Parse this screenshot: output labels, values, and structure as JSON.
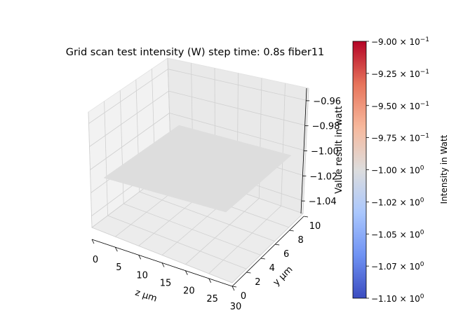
{
  "chart_data": {
    "type": "surface",
    "title": "Grid scan test intensity (W) step time: 0.8s fiber11",
    "xlabel": "z µm",
    "ylabel": "y µm",
    "zlabel": "Value result in watt",
    "x_ticks": [
      "0",
      "5",
      "10",
      "15",
      "20",
      "25",
      "30"
    ],
    "x_tick_values": [
      0,
      5,
      10,
      15,
      20,
      25,
      30
    ],
    "y_ticks": [
      "0",
      "2",
      "4",
      "6",
      "8",
      "10"
    ],
    "y_tick_values": [
      0,
      2,
      4,
      6,
      8,
      10
    ],
    "z_ticks": [
      "−0.96",
      "−0.98",
      "−1.00",
      "−1.02",
      "−1.04"
    ],
    "z_tick_values": [
      -0.96,
      -0.98,
      -1.0,
      -1.02,
      -1.04
    ],
    "xlim": [
      0,
      30
    ],
    "ylim": [
      0,
      10
    ],
    "zlim": [
      -1.05,
      -0.95
    ],
    "surface": {
      "x": [
        0,
        30
      ],
      "y": [
        0,
        10
      ],
      "z": [
        [
          -1.0,
          -1.0
        ],
        [
          -1.0,
          -1.0
        ]
      ],
      "constant_value": -1.0,
      "color": "#dddddd"
    },
    "grid": true,
    "colorbar": {
      "label": "Intensity in Watt",
      "cmap": "coolwarm",
      "cmap_colors": [
        "#3b4cc0",
        "#6f92f3",
        "#aac7fd",
        "#dddddd",
        "#f7b89c",
        "#e7745b",
        "#b40426"
      ],
      "range": [
        -1.1,
        -0.9
      ],
      "ticks": [
        {
          "value": -0.9,
          "mantissa": "−9.00",
          "exp": "−1"
        },
        {
          "value": -0.925,
          "mantissa": "−9.25",
          "exp": "−1"
        },
        {
          "value": -0.95,
          "mantissa": "−9.50",
          "exp": "−1"
        },
        {
          "value": -0.975,
          "mantissa": "−9.75",
          "exp": "−1"
        },
        {
          "value": -1.0,
          "mantissa": "−1.00",
          "exp": "0"
        },
        {
          "value": -1.025,
          "mantissa": "−1.02",
          "exp": "0"
        },
        {
          "value": -1.05,
          "mantissa": "−1.05",
          "exp": "0"
        },
        {
          "value": -1.075,
          "mantissa": "−1.07",
          "exp": "0"
        },
        {
          "value": -1.1,
          "mantissa": "−1.10",
          "exp": "0"
        }
      ]
    }
  }
}
